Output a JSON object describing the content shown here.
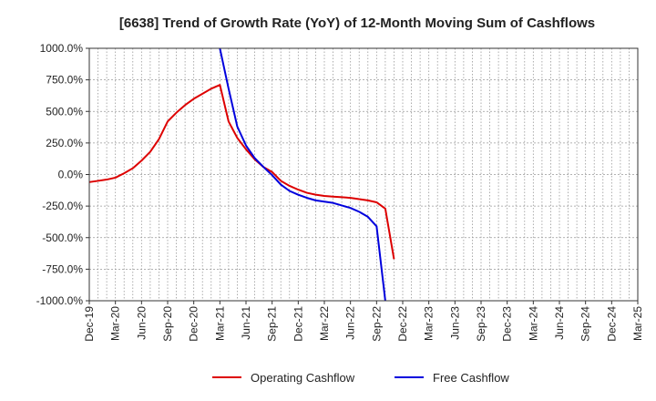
{
  "chart_data": {
    "type": "line",
    "title": "[6638]  Trend of Growth Rate (YoY) of 12-Month Moving Sum of Cashflows",
    "xlabel": "",
    "ylabel": "",
    "ylim": [
      -1000,
      1000
    ],
    "y_unit": "%",
    "y_ticks": [
      "1000.0%",
      "750.0%",
      "500.0%",
      "250.0%",
      "0.0%",
      "-250.0%",
      "-500.0%",
      "-750.0%",
      "-1000.0%"
    ],
    "x_ticks": [
      "Dec-19",
      "Mar-20",
      "Jun-20",
      "Sep-20",
      "Dec-20",
      "Mar-21",
      "Jun-21",
      "Sep-21",
      "Dec-21",
      "Mar-22",
      "Jun-22",
      "Sep-22",
      "Dec-22",
      "Mar-23",
      "Jun-23",
      "Sep-23",
      "Dec-23",
      "Mar-24",
      "Jun-24",
      "Sep-24",
      "Dec-24",
      "Mar-25"
    ],
    "x_start": "2019-12",
    "x_end": "2025-03",
    "grid": true,
    "legend_position": "bottom",
    "series": [
      {
        "name": "Operating Cashflow",
        "color": "#dd0000",
        "points": [
          [
            "2019-12",
            -60
          ],
          [
            "2020-01",
            -50
          ],
          [
            "2020-02",
            -40
          ],
          [
            "2020-03",
            -25
          ],
          [
            "2020-04",
            10
          ],
          [
            "2020-05",
            50
          ],
          [
            "2020-06",
            110
          ],
          [
            "2020-07",
            180
          ],
          [
            "2020-08",
            280
          ],
          [
            "2020-09",
            420
          ],
          [
            "2020-10",
            490
          ],
          [
            "2020-11",
            550
          ],
          [
            "2020-12",
            600
          ],
          [
            "2021-01",
            640
          ],
          [
            "2021-02",
            680
          ],
          [
            "2021-03",
            710
          ],
          [
            "2021-04",
            420
          ],
          [
            "2021-05",
            290
          ],
          [
            "2021-06",
            200
          ],
          [
            "2021-07",
            120
          ],
          [
            "2021-08",
            60
          ],
          [
            "2021-09",
            20
          ],
          [
            "2021-10",
            -50
          ],
          [
            "2021-11",
            -90
          ],
          [
            "2021-12",
            -120
          ],
          [
            "2022-01",
            -145
          ],
          [
            "2022-02",
            -160
          ],
          [
            "2022-03",
            -170
          ],
          [
            "2022-04",
            -175
          ],
          [
            "2022-05",
            -180
          ],
          [
            "2022-06",
            -185
          ],
          [
            "2022-07",
            -195
          ],
          [
            "2022-08",
            -205
          ],
          [
            "2022-09",
            -220
          ],
          [
            "2022-10",
            -270
          ],
          [
            "2022-11",
            -670
          ]
        ]
      },
      {
        "name": "Free Cashflow",
        "color": "#0000dd",
        "points": [
          [
            "2021-03",
            1000
          ],
          [
            "2021-04",
            680
          ],
          [
            "2021-05",
            380
          ],
          [
            "2021-06",
            230
          ],
          [
            "2021-07",
            130
          ],
          [
            "2021-08",
            60
          ],
          [
            "2021-09",
            -5
          ],
          [
            "2021-10",
            -80
          ],
          [
            "2021-11",
            -130
          ],
          [
            "2021-12",
            -160
          ],
          [
            "2022-01",
            -185
          ],
          [
            "2022-02",
            -205
          ],
          [
            "2022-03",
            -215
          ],
          [
            "2022-04",
            -225
          ],
          [
            "2022-05",
            -245
          ],
          [
            "2022-06",
            -265
          ],
          [
            "2022-07",
            -295
          ],
          [
            "2022-08",
            -335
          ],
          [
            "2022-09",
            -410
          ],
          [
            "2022-10",
            -1000
          ]
        ]
      }
    ]
  }
}
